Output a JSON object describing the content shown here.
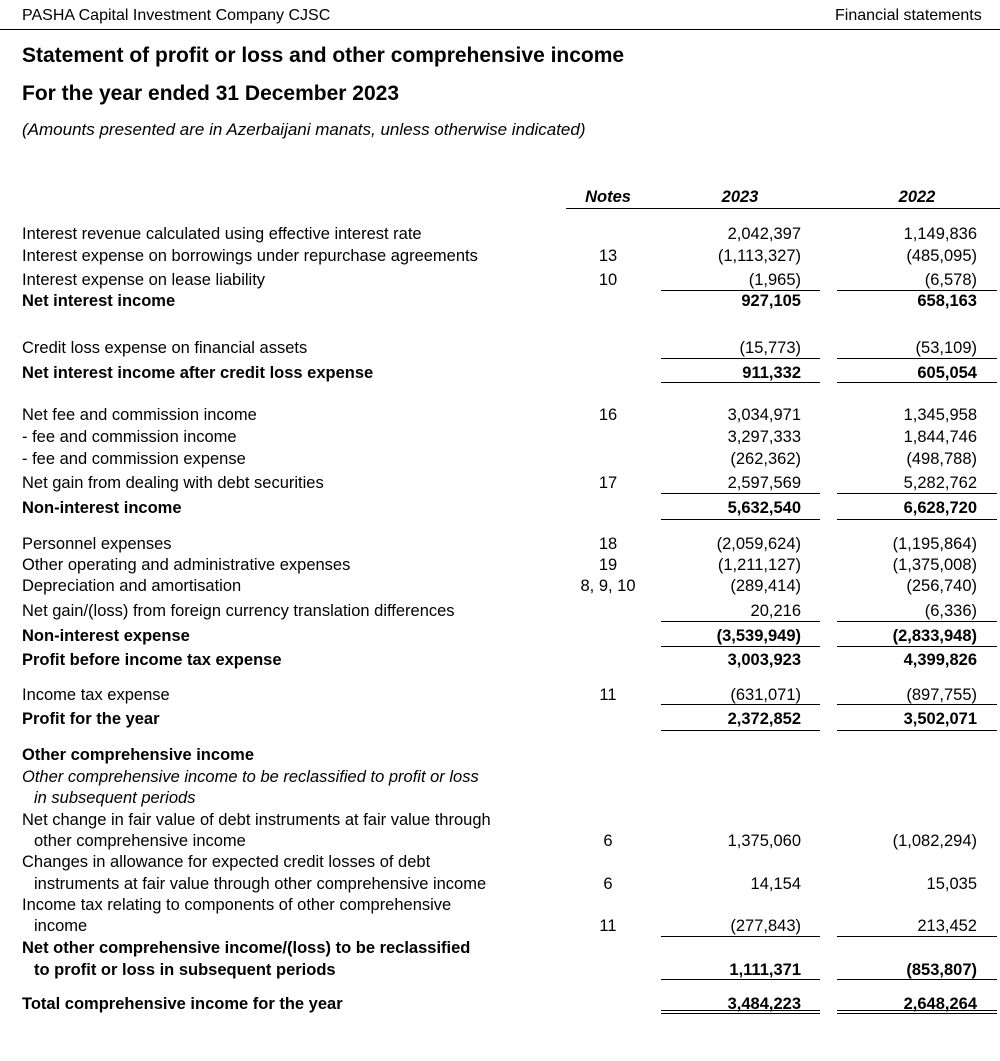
{
  "header": {
    "company": "PASHA Capital Investment Company CJSC",
    "section": "Financial statements"
  },
  "title": "Statement of profit or loss and other comprehensive income",
  "period": "For the year ended 31 December 2023",
  "subtitle": "(Amounts presented are in Azerbaijani manats, unless otherwise indicated)",
  "columns": {
    "notes": "Notes",
    "y2023": "2023",
    "y2022": "2022"
  },
  "rows": [
    {
      "label": "Interest revenue calculated using effective interest rate",
      "note": "",
      "v2023": "2,042,397",
      "v2022": "1,149,836"
    },
    {
      "label": "Interest expense on borrowings under repurchase agreements",
      "note": "13",
      "v2023": "(1,113,327)",
      "v2022": "(485,095)"
    },
    {
      "label": "Interest expense on lease liability",
      "note": "10",
      "v2023": "(1,965)",
      "v2022": "(6,578)"
    },
    {
      "label": "Net interest income",
      "note": "",
      "v2023": "927,105",
      "v2022": "658,163",
      "bold": true
    },
    {
      "label": "Credit loss expense on financial assets",
      "note": "",
      "v2023": "(15,773)",
      "v2022": "(53,109)"
    },
    {
      "label": "Net interest income after credit loss expense",
      "note": "",
      "v2023": "911,332",
      "v2022": "605,054",
      "bold": true
    },
    {
      "label": "Net fee and commission income",
      "note": "16",
      "v2023": "3,034,971",
      "v2022": "1,345,958"
    },
    {
      "label": "- fee and commission income",
      "note": "",
      "v2023": "3,297,333",
      "v2022": "1,844,746"
    },
    {
      "label": "- fee and commission expense",
      "note": "",
      "v2023": "(262,362)",
      "v2022": "(498,788)"
    },
    {
      "label": "Net gain from dealing with debt securities",
      "note": "17",
      "v2023": "2,597,569",
      "v2022": "5,282,762"
    },
    {
      "label": "Non-interest income",
      "note": "",
      "v2023": "5,632,540",
      "v2022": "6,628,720",
      "bold": true
    },
    {
      "label": "Personnel expenses",
      "note": "18",
      "v2023": "(2,059,624)",
      "v2022": "(1,195,864)"
    },
    {
      "label": "Other operating and administrative expenses",
      "note": "19",
      "v2023": "(1,211,127)",
      "v2022": "(1,375,008)"
    },
    {
      "label": "Depreciation and amortisation",
      "note": "8, 9, 10",
      "v2023": "(289,414)",
      "v2022": "(256,740)"
    },
    {
      "label": "Net gain/(loss) from foreign currency translation differences",
      "note": "",
      "v2023": "20,216",
      "v2022": "(6,336)"
    },
    {
      "label": "Non-interest expense",
      "note": "",
      "v2023": "(3,539,949)",
      "v2022": "(2,833,948)",
      "bold": true
    },
    {
      "label": "Profit before income tax expense",
      "note": "",
      "v2023": "3,003,923",
      "v2022": "4,399,826",
      "bold": true
    },
    {
      "label": "Income tax expense",
      "note": "11",
      "v2023": "(631,071)",
      "v2022": "(897,755)"
    },
    {
      "label": "Profit for the year",
      "note": "",
      "v2023": "2,372,852",
      "v2022": "3,502,071",
      "bold": true
    },
    {
      "label": "Other comprehensive income",
      "note": "",
      "v2023": "",
      "v2022": "",
      "bold": true
    },
    {
      "label": "Other comprehensive income to be reclassified to profit or loss",
      "note": "",
      "v2023": "",
      "v2022": "",
      "italic": true
    },
    {
      "label": "in subsequent periods",
      "note": "",
      "v2023": "",
      "v2022": "",
      "italic": true,
      "indent": true
    },
    {
      "label": "Net change in fair value of debt instruments at fair value through",
      "note": "",
      "v2023": "",
      "v2022": ""
    },
    {
      "label": "other comprehensive income",
      "note": "6",
      "v2023": "1,375,060",
      "v2022": "(1,082,294)",
      "indent": true
    },
    {
      "label": "Changes in allowance for expected credit losses of debt",
      "note": "",
      "v2023": "",
      "v2022": ""
    },
    {
      "label": "instruments at fair value through other comprehensive income",
      "note": "6",
      "v2023": "14,154",
      "v2022": "15,035",
      "indent": true
    },
    {
      "label": "Income tax relating to components of other comprehensive",
      "note": "",
      "v2023": "",
      "v2022": ""
    },
    {
      "label": "income",
      "note": "11",
      "v2023": "(277,843)",
      "v2022": "213,452",
      "indent": true
    },
    {
      "label": "Net other comprehensive income/(loss) to be reclassified",
      "note": "",
      "v2023": "",
      "v2022": "",
      "bold": true
    },
    {
      "label": "to profit or loss in subsequent periods",
      "note": "",
      "v2023": "1,111,371",
      "v2022": "(853,807)",
      "bold": true,
      "indent": true
    },
    {
      "label": "Total comprehensive income for the year",
      "note": "",
      "v2023": "3,484,223",
      "v2022": "2,648,264",
      "bold": true
    }
  ]
}
